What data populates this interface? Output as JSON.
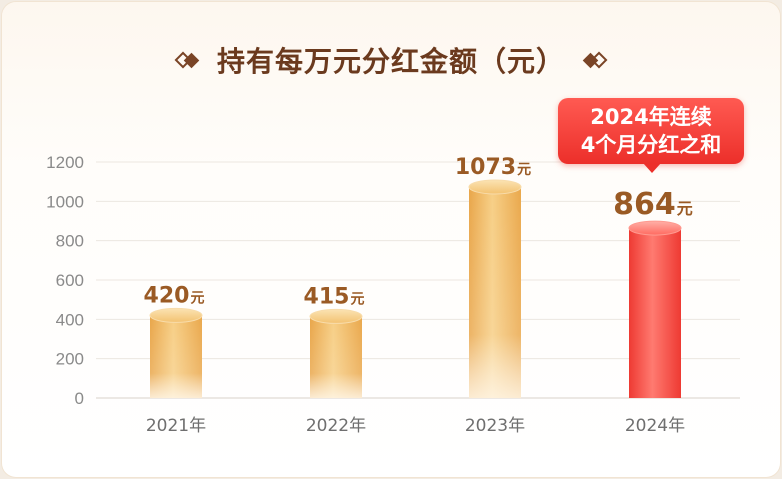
{
  "title": "持有每万元分红金额（元）",
  "callout": {
    "line1": "2024年连续",
    "line2": "4个月分红之和"
  },
  "colors": {
    "title": "#6b3a1e",
    "gold_bar": "#f0b45a",
    "red_bar": "#f23b33",
    "value_label": "#9a5a24",
    "highlight_label": "#ec2f2a"
  },
  "chart_data": {
    "type": "bar",
    "title": "持有每万元分红金额（元）",
    "categories": [
      "2021年",
      "2022年",
      "2023年",
      "2024年"
    ],
    "values": [
      420,
      415,
      1073,
      864
    ],
    "value_labels": [
      "420",
      "415",
      "1073",
      "864"
    ],
    "value_unit": "元",
    "highlight_index": 3,
    "yticks": [
      "0",
      "200",
      "400",
      "600",
      "800",
      "1000",
      "1200"
    ],
    "ylim": [
      0,
      1200
    ],
    "grid": true,
    "legend": "none"
  }
}
